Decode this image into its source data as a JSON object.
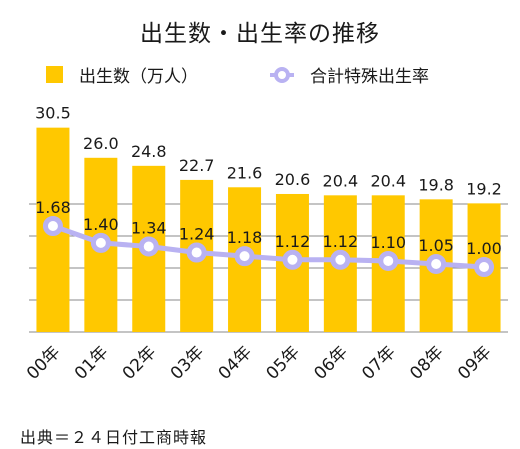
{
  "title": "出生数・出生率の推移",
  "legend": {
    "bar_label": "出生数（万人）",
    "line_label": "合計特殊出生率"
  },
  "colors": {
    "bar": "#FFC800",
    "line": "#B9B2F2",
    "grid": "#8a8a8a"
  },
  "source": "出典＝２４日付工商時報",
  "chart_data": {
    "type": "bar",
    "categories": [
      "00年",
      "01年",
      "02年",
      "03年",
      "04年",
      "05年",
      "06年",
      "07年",
      "08年",
      "09年"
    ],
    "series": [
      {
        "name": "出生数（万人）",
        "type": "bar",
        "values": [
          30.5,
          26.0,
          24.8,
          22.7,
          21.6,
          20.6,
          20.4,
          20.4,
          19.8,
          19.2
        ]
      },
      {
        "name": "合計特殊出生率",
        "type": "line",
        "values": [
          1.68,
          1.4,
          1.34,
          1.24,
          1.18,
          1.12,
          1.12,
          1.1,
          1.05,
          1.0
        ]
      }
    ],
    "bar_labels": [
      "30.5",
      "26.0",
      "24.8",
      "22.7",
      "21.6",
      "20.6",
      "20.4",
      "20.4",
      "19.8",
      "19.2"
    ],
    "line_labels": [
      "1.68",
      "1.40",
      "1.34",
      "1.24",
      "1.18",
      "1.12",
      "1.12",
      "1.10",
      "1.05",
      "1.00"
    ],
    "ylim": [
      0,
      30
    ],
    "grid": true,
    "legend_position": "top"
  }
}
